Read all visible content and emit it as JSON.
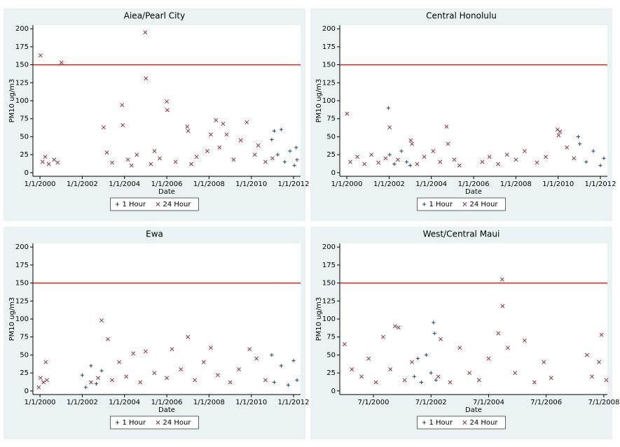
{
  "chart_data": [
    {
      "type": "scatter",
      "title": "Aiea/Pearl City",
      "x_label": "Date",
      "y_label": "PM10 ug/m3",
      "xlim": [
        "1999-09-01",
        "2012-05-01"
      ],
      "ylim": [
        -5,
        205
      ],
      "yticks": [
        0,
        25,
        50,
        75,
        100,
        125,
        150,
        175,
        200
      ],
      "xticks": [
        {
          "value": "2000-01-01",
          "label": "1/1/2000"
        },
        {
          "value": "2002-01-01",
          "label": "1/1/2002"
        },
        {
          "value": "2004-01-01",
          "label": "1/1/2004"
        },
        {
          "value": "2006-01-01",
          "label": "1/1/2006"
        },
        {
          "value": "2008-01-01",
          "label": "1/1/2008"
        },
        {
          "value": "2010-01-01",
          "label": "1/1/2010"
        },
        {
          "value": "2012-01-01",
          "label": "1/1/2012"
        }
      ],
      "reference_line": {
        "value": 150,
        "color": "#d62020"
      },
      "series": [
        {
          "name": "1 Hour",
          "marker": "+",
          "color": "#1a476f",
          "x": [
            "2010-12-20",
            "2011-02-01",
            "2011-04-01",
            "2011-06-01",
            "2011-08-01",
            "2011-11-01",
            "2012-01-15",
            "2012-02-15",
            "2012-03-01"
          ],
          "values": [
            46,
            58,
            25,
            60,
            15,
            30,
            10,
            35,
            18
          ]
        },
        {
          "name": "24 Hour",
          "marker": "x",
          "color": "#90353b",
          "x": [
            "2000-01-10",
            "2000-02-15",
            "2000-04-01",
            "2000-06-01",
            "2000-09-01",
            "2000-11-01",
            "2001-01-05",
            "2003-01-05",
            "2003-03-01",
            "2003-06-01",
            "2003-11-20",
            "2003-12-01",
            "2004-03-01",
            "2004-05-01",
            "2004-08-01",
            "2004-12-25",
            "2005-01-05",
            "2005-04-01",
            "2005-06-01",
            "2005-09-01",
            "2006-01-01",
            "2006-01-10",
            "2006-06-01",
            "2006-12-20",
            "2007-01-05",
            "2007-03-01",
            "2007-06-01",
            "2007-12-01",
            "2008-02-01",
            "2008-05-01",
            "2008-07-01",
            "2008-09-01",
            "2008-11-01",
            "2009-03-01",
            "2009-07-01",
            "2009-10-15",
            "2010-03-01",
            "2010-05-01",
            "2010-09-01",
            "2011-01-01"
          ],
          "values": [
            163,
            15,
            22,
            12,
            18,
            14,
            153,
            63,
            28,
            14,
            94,
            66,
            18,
            10,
            25,
            195,
            131,
            12,
            30,
            20,
            99,
            87,
            15,
            64,
            58,
            12,
            22,
            30,
            53,
            73,
            35,
            68,
            53,
            18,
            45,
            70,
            25,
            38,
            15,
            20
          ]
        }
      ]
    },
    {
      "type": "scatter",
      "title": "Central Honolulu",
      "x_label": "Date",
      "y_label": "PM10 ug/m3",
      "xlim": [
        "1999-09-01",
        "2012-05-01"
      ],
      "ylim": [
        -5,
        205
      ],
      "yticks": [
        0,
        25,
        50,
        75,
        100,
        125,
        150,
        175,
        200
      ],
      "xticks": [
        {
          "value": "2000-01-01",
          "label": "1/1/2000"
        },
        {
          "value": "2002-01-01",
          "label": "1/1/2002"
        },
        {
          "value": "2004-01-01",
          "label": "1/1/2004"
        },
        {
          "value": "2006-01-01",
          "label": "1/1/2006"
        },
        {
          "value": "2008-01-01",
          "label": "1/1/2008"
        },
        {
          "value": "2010-01-01",
          "label": "1/1/2010"
        },
        {
          "value": "2012-01-01",
          "label": "1/1/2012"
        }
      ],
      "reference_line": {
        "value": 150,
        "color": "#d62020"
      },
      "series": [
        {
          "name": "1 Hour",
          "marker": "+",
          "color": "#1a476f",
          "x": [
            "2001-12-20",
            "2002-01-10",
            "2002-04-01",
            "2002-08-01",
            "2002-11-01",
            "2003-01-01",
            "2010-12-15",
            "2011-01-10",
            "2011-05-01",
            "2011-09-01",
            "2012-01-01",
            "2012-03-01"
          ],
          "values": [
            90,
            25,
            12,
            30,
            15,
            10,
            50,
            40,
            15,
            30,
            10,
            20
          ]
        },
        {
          "name": "24 Hour",
          "marker": "x",
          "color": "#90353b",
          "x": [
            "2000-01-05",
            "2000-03-01",
            "2000-07-01",
            "2000-11-01",
            "2001-03-01",
            "2001-07-01",
            "2001-11-01",
            "2002-01-10",
            "2002-06-01",
            "2003-01-10",
            "2003-02-01",
            "2003-05-01",
            "2003-09-01",
            "2004-02-01",
            "2004-06-01",
            "2004-09-20",
            "2004-10-15",
            "2005-02-01",
            "2005-05-01",
            "2006-06-01",
            "2006-10-01",
            "2007-03-01",
            "2007-08-01",
            "2008-01-01",
            "2008-06-01",
            "2009-01-01",
            "2009-06-01",
            "2009-12-20",
            "2010-01-10",
            "2010-02-01",
            "2010-06-01",
            "2010-10-01"
          ],
          "values": [
            82,
            15,
            22,
            12,
            25,
            14,
            20,
            63,
            18,
            45,
            40,
            12,
            22,
            30,
            15,
            64,
            40,
            18,
            10,
            15,
            22,
            12,
            25,
            18,
            30,
            14,
            22,
            60,
            52,
            57,
            35,
            20
          ]
        }
      ]
    },
    {
      "type": "scatter",
      "title": "Ewa",
      "x_label": "Date",
      "y_label": "PM10 ug/m3",
      "xlim": [
        "1999-09-01",
        "2012-05-01"
      ],
      "ylim": [
        -5,
        205
      ],
      "yticks": [
        0,
        25,
        50,
        75,
        100,
        125,
        150,
        175,
        200
      ],
      "xticks": [
        {
          "value": "2000-01-01",
          "label": "1/1/2000"
        },
        {
          "value": "2002-01-01",
          "label": "1/1/2002"
        },
        {
          "value": "2004-01-01",
          "label": "1/1/2004"
        },
        {
          "value": "2006-01-01",
          "label": "1/1/2006"
        },
        {
          "value": "2008-01-01",
          "label": "1/1/2008"
        },
        {
          "value": "2010-01-01",
          "label": "1/1/2010"
        },
        {
          "value": "2012-01-01",
          "label": "1/1/2012"
        }
      ],
      "reference_line": {
        "value": 150,
        "color": "#d62020"
      },
      "series": [
        {
          "name": "1 Hour",
          "marker": "+",
          "color": "#1a476f",
          "x": [
            "2002-01-01",
            "2002-03-01",
            "2002-06-01",
            "2002-09-01",
            "2002-12-01",
            "2010-12-20",
            "2011-02-01",
            "2011-06-01",
            "2011-10-01",
            "2012-01-01",
            "2012-03-01"
          ],
          "values": [
            22,
            5,
            35,
            10,
            28,
            50,
            12,
            35,
            8,
            42,
            15
          ]
        },
        {
          "name": "24 Hour",
          "marker": "x",
          "color": "#90353b",
          "x": [
            "1999-12-10",
            "2000-01-10",
            "2000-03-01",
            "2000-04-10",
            "2000-05-01",
            "2002-06-01",
            "2002-10-01",
            "2002-12-01",
            "2003-03-20",
            "2003-06-01",
            "2003-10-01",
            "2004-02-01",
            "2004-06-01",
            "2004-10-01",
            "2005-01-01",
            "2005-06-01",
            "2006-01-01",
            "2006-04-01",
            "2006-09-01",
            "2007-01-01",
            "2007-05-01",
            "2007-10-01",
            "2008-02-01",
            "2008-06-01",
            "2009-01-01",
            "2009-06-01",
            "2009-12-01",
            "2010-04-01",
            "2010-09-01"
          ],
          "values": [
            5,
            18,
            12,
            40,
            15,
            12,
            18,
            98,
            72,
            15,
            40,
            20,
            52,
            12,
            55,
            25,
            18,
            58,
            30,
            75,
            15,
            40,
            60,
            22,
            12,
            30,
            58,
            45,
            15
          ]
        }
      ]
    },
    {
      "type": "scatter",
      "title": "West/Central Maui",
      "x_label": "Date",
      "y_label": "PM10 ug/m3",
      "xlim": [
        "1999-05-01",
        "2008-08-15"
      ],
      "ylim": [
        -5,
        205
      ],
      "yticks": [
        0,
        25,
        50,
        75,
        100,
        125,
        150,
        175,
        200
      ],
      "xticks": [
        {
          "value": "2000-07-01",
          "label": "7/1/2000"
        },
        {
          "value": "2002-07-01",
          "label": "7/1/2002"
        },
        {
          "value": "2004-07-01",
          "label": "7/1/2004"
        },
        {
          "value": "2006-07-01",
          "label": "7/1/2006"
        },
        {
          "value": "2008-07-01",
          "label": "7/1/2008"
        }
      ],
      "reference_line": {
        "value": 150,
        "color": "#d62020"
      },
      "series": [
        {
          "name": "1 Hour",
          "marker": "+",
          "color": "#1a476f",
          "x": [
            "2001-12-01",
            "2002-01-15",
            "2002-03-01",
            "2002-05-01",
            "2002-07-01",
            "2002-08-01",
            "2002-08-15",
            "2002-09-01"
          ],
          "values": [
            20,
            45,
            12,
            50,
            25,
            95,
            80,
            15
          ]
        },
        {
          "name": "24 Hour",
          "marker": "x",
          "color": "#90353b",
          "x": [
            "1999-07-01",
            "1999-10-01",
            "2000-02-01",
            "2000-05-01",
            "2000-08-01",
            "2000-11-01",
            "2001-02-01",
            "2001-04-01",
            "2001-05-15",
            "2001-08-01",
            "2001-11-01",
            "2002-10-01",
            "2002-11-01",
            "2003-03-01",
            "2003-07-01",
            "2003-11-01",
            "2004-03-01",
            "2004-07-01",
            "2004-11-01",
            "2004-12-20",
            "2004-12-25",
            "2005-03-01",
            "2005-06-01",
            "2005-10-01",
            "2006-02-01",
            "2006-06-01",
            "2006-09-01",
            "2007-12-01",
            "2008-02-01",
            "2008-05-01",
            "2008-06-01",
            "2008-08-01"
          ],
          "values": [
            65,
            30,
            20,
            45,
            12,
            75,
            30,
            90,
            88,
            15,
            40,
            20,
            72,
            12,
            60,
            25,
            15,
            45,
            80,
            155,
            118,
            60,
            25,
            70,
            12,
            40,
            18,
            50,
            20,
            40,
            78,
            15
          ]
        }
      ]
    }
  ]
}
